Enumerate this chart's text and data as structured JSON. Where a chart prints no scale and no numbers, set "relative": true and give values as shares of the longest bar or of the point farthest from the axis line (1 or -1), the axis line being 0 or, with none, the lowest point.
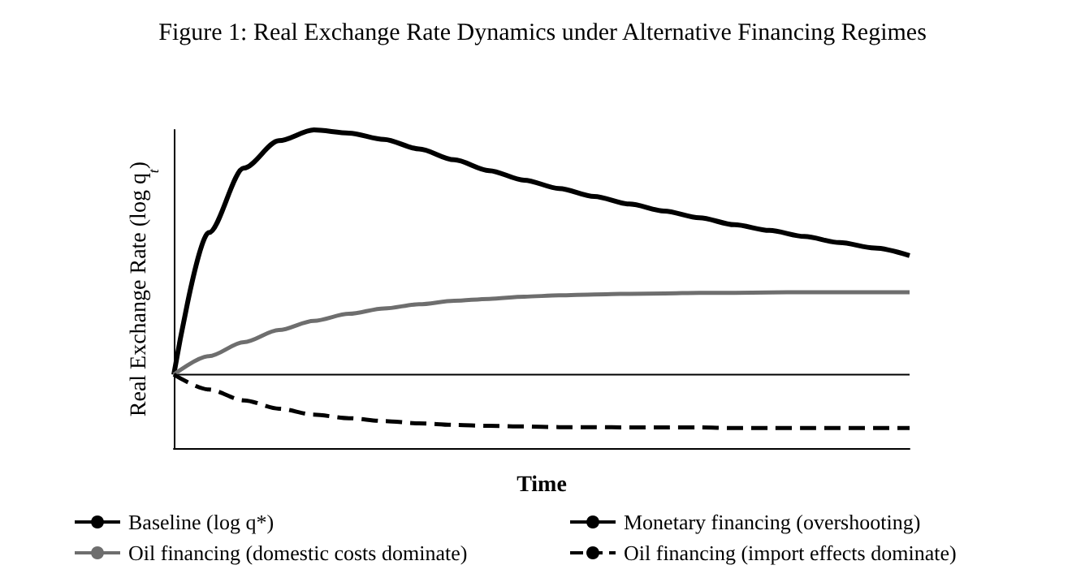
{
  "chart_data": {
    "type": "line",
    "title": "Figure 1: Real Exchange Rate Dynamics under Alternative Financing Regimes",
    "xlabel": "Time",
    "ylabel": "Real Exchange Rate (log q$_{t}$)",
    "relative": true,
    "marker": "none",
    "legend": "bottom",
    "grid": false,
    "categories": [
      null,
      null,
      null,
      null,
      null,
      null,
      null,
      null,
      null,
      null,
      null,
      null,
      null,
      null,
      null,
      null,
      null,
      null,
      null,
      null,
      null,
      null
    ],
    "series": [
      {
        "name": "Baseline (log q*)",
        "color": "#000000",
        "line_style": "solid",
        "values": [
          0.231,
          0.231,
          0.231,
          0.231,
          0.231,
          0.231,
          0.231,
          0.231,
          0.231,
          0.231,
          0.231,
          0.231,
          0.231,
          0.231,
          0.231,
          0.231,
          0.231,
          0.231,
          0.231,
          0.231,
          0.231,
          0.231
        ]
      },
      {
        "name": "Monetary financing (overshooting)",
        "color": "#000000",
        "line_style": "solid",
        "values": [
          0.231,
          0.677,
          0.88,
          0.966,
          1,
          0.99,
          0.97,
          0.94,
          0.906,
          0.872,
          0.842,
          0.816,
          0.791,
          0.767,
          0.745,
          0.724,
          0.702,
          0.684,
          0.665,
          0.646,
          0.629,
          0.605
        ]
      },
      {
        "name": "Oil financing (domestic costs dominate)",
        "color": "#6e6e6e",
        "line_style": "solid",
        "values": [
          0.231,
          0.289,
          0.333,
          0.371,
          0.4,
          0.422,
          0.439,
          0.452,
          0.463,
          0.469,
          0.476,
          0.48,
          0.483,
          0.485,
          0.486,
          0.488,
          0.488,
          0.489,
          0.49,
          0.49,
          0.49,
          0.49
        ]
      },
      {
        "name": "Oil financing (import effects dominate)",
        "color": "#000000",
        "line_style": "dashed",
        "values": [
          0.231,
          0.184,
          0.15,
          0.124,
          0.105,
          0.094,
          0.085,
          0.078,
          0.073,
          0.07,
          0.068,
          0.066,
          0.066,
          0.065,
          0.065,
          0.065,
          0.063,
          0.063,
          0.063,
          0.063,
          0.063,
          0.063
        ]
      }
    ]
  }
}
